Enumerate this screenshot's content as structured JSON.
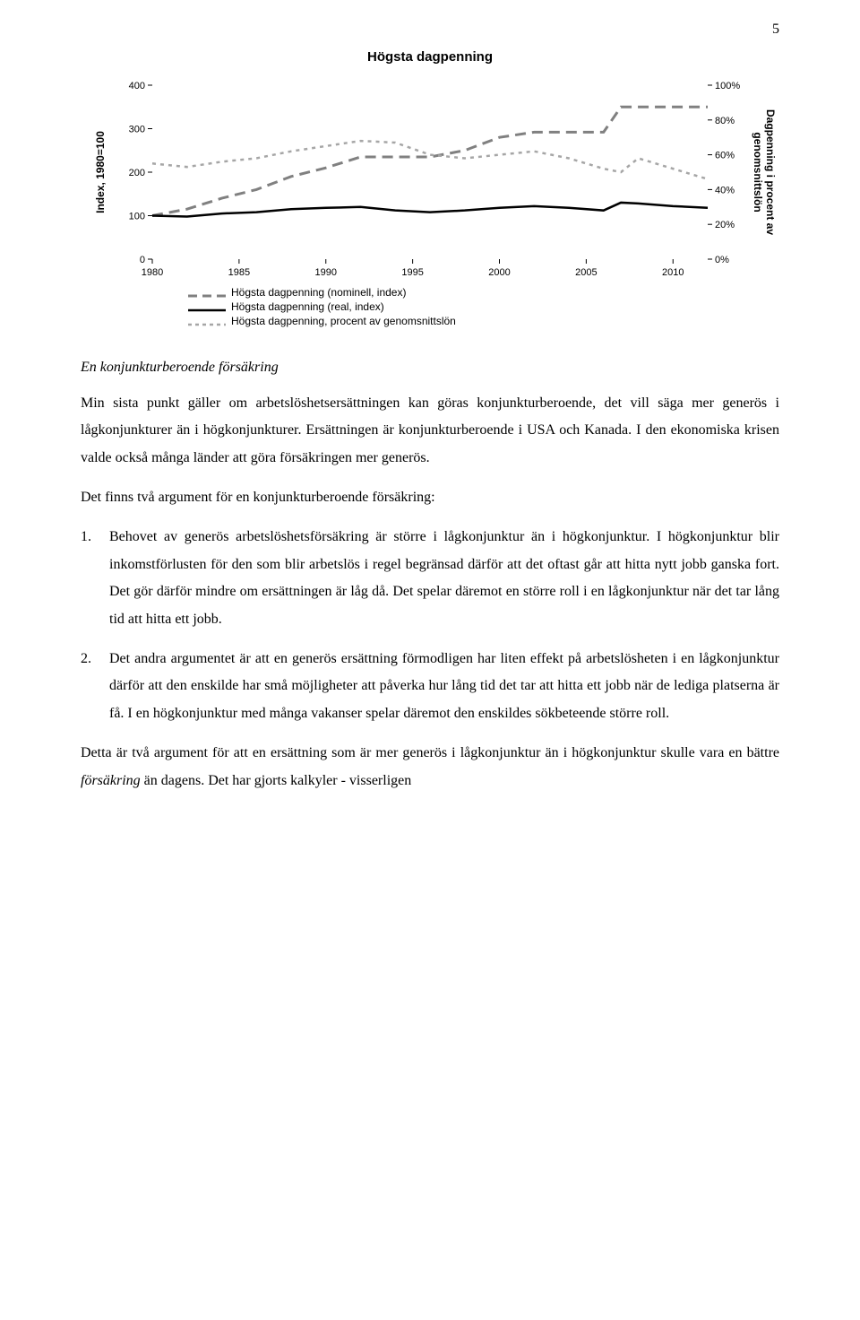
{
  "page_number": "5",
  "chart": {
    "type": "line",
    "title": "Högsta dagpenning",
    "y_left_label": "Index, 1980=100",
    "y_right_label": "Dagpenning i procent av\ngenomsnittslön",
    "x_ticks": [
      1980,
      1985,
      1990,
      1995,
      2000,
      2005,
      2010
    ],
    "xlim": [
      1980,
      2012
    ],
    "y_left_ticks": [
      0,
      100,
      200,
      300,
      400
    ],
    "y_left_lim": [
      0,
      400
    ],
    "y_right_ticks": [
      "0%",
      "20%",
      "40%",
      "60%",
      "80%",
      "100%"
    ],
    "y_right_lim": [
      0,
      100
    ],
    "background_color": "#ffffff",
    "grid_color": "#bfbfbf",
    "tick_font_size": 11,
    "axis_label_font_size": 12,
    "title_font_size": 15,
    "series": [
      {
        "name": "Högsta dagpenning (nominell, index)",
        "color": "#808080",
        "style": "long-dash",
        "width": 3,
        "points": [
          [
            1980,
            100
          ],
          [
            1982,
            115
          ],
          [
            1984,
            140
          ],
          [
            1986,
            160
          ],
          [
            1988,
            190
          ],
          [
            1990,
            210
          ],
          [
            1992,
            235
          ],
          [
            1994,
            235
          ],
          [
            1996,
            235
          ],
          [
            1998,
            250
          ],
          [
            2000,
            280
          ],
          [
            2002,
            292
          ],
          [
            2004,
            292
          ],
          [
            2006,
            292
          ],
          [
            2007,
            350
          ],
          [
            2008,
            350
          ],
          [
            2010,
            350
          ],
          [
            2012,
            350
          ]
        ]
      },
      {
        "name": "Högsta dagpenning (real, index)",
        "color": "#000000",
        "style": "solid",
        "width": 2.5,
        "points": [
          [
            1980,
            100
          ],
          [
            1982,
            98
          ],
          [
            1984,
            105
          ],
          [
            1986,
            108
          ],
          [
            1988,
            115
          ],
          [
            1990,
            118
          ],
          [
            1992,
            120
          ],
          [
            1994,
            112
          ],
          [
            1996,
            108
          ],
          [
            1998,
            112
          ],
          [
            2000,
            118
          ],
          [
            2002,
            122
          ],
          [
            2004,
            118
          ],
          [
            2006,
            112
          ],
          [
            2007,
            130
          ],
          [
            2008,
            128
          ],
          [
            2010,
            122
          ],
          [
            2012,
            118
          ]
        ]
      },
      {
        "name": "Högsta dagpenning, procent av genomsnittslön",
        "color": "#a6a6a6",
        "style": "short-dash",
        "width": 2.5,
        "axis": "right",
        "points": [
          [
            1980,
            55
          ],
          [
            1982,
            53
          ],
          [
            1984,
            56
          ],
          [
            1986,
            58
          ],
          [
            1988,
            62
          ],
          [
            1990,
            65
          ],
          [
            1992,
            68
          ],
          [
            1994,
            67
          ],
          [
            1996,
            60
          ],
          [
            1998,
            58
          ],
          [
            2000,
            60
          ],
          [
            2002,
            62
          ],
          [
            2004,
            58
          ],
          [
            2006,
            52
          ],
          [
            2007,
            50
          ],
          [
            2008,
            58
          ],
          [
            2010,
            52
          ],
          [
            2012,
            46
          ]
        ]
      }
    ],
    "legend_items": [
      "Högsta dagpenning (nominell, index)",
      "Högsta dagpenning (real, index)",
      "Högsta dagpenning, procent av genomsnittslön"
    ]
  },
  "subhead": "En konjunkturberoende försäkring",
  "para1": "Min sista punkt gäller om arbetslöshetsersättningen kan göras konjunkturberoende, det vill säga mer generös i lågkonjunkturer än i högkonjunkturer. Ersättningen är konjunkturberoende i USA och Kanada. I den ekonomiska krisen valde också många länder att göra försäkringen mer generös.",
  "para2": "Det finns två argument för en konjunkturberoende försäkring:",
  "li1": "Behovet av generös arbetslöshetsförsäkring är större i lågkonjunktur än i högkonjunktur. I högkonjunktur blir inkomstförlusten för den som blir arbetslös i regel begränsad därför att det oftast går att hitta nytt jobb ganska fort. Det gör därför mindre om ersättningen är låg då. Det spelar däremot en större roll i en lågkonjunktur när det tar lång tid att hitta ett jobb.",
  "li2": "Det andra argumentet är att en generös ersättning förmodligen har liten effekt på arbetslösheten i en lågkonjunktur därför att den enskilde har små möjligheter att påverka hur lång tid det tar att hitta ett jobb när de lediga platserna är få. I en högkonjunktur med många vakanser spelar däremot den enskildes sökbeteende större roll.",
  "para3_a": "Detta är två argument för att en ersättning som är mer generös i lågkonjunktur än i högkonjunktur skulle vara en bättre ",
  "para3_i": "försäkring",
  "para3_b": " än dagens. Det har gjorts kalkyler - visserligen"
}
